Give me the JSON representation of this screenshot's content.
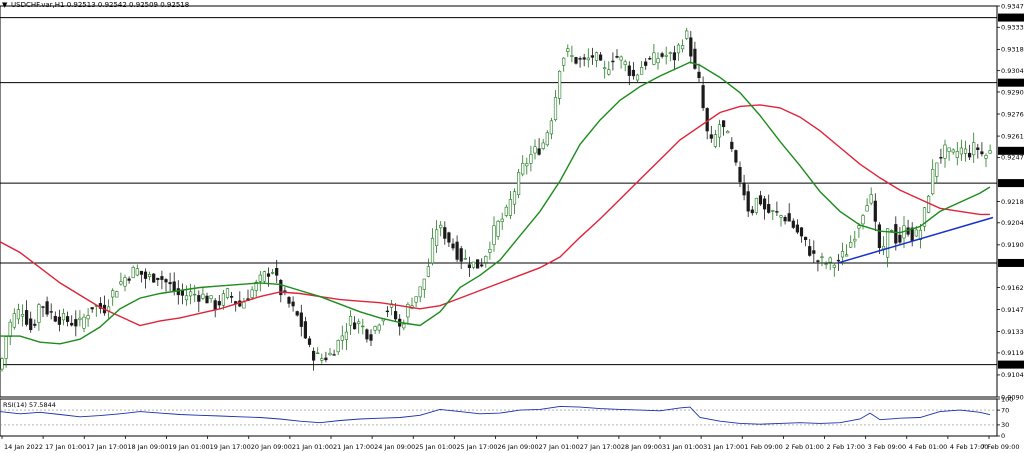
{
  "header": {
    "arrow_icon": "triangle-down-icon",
    "title": "USDCHF.var,H1  0.92513 0.92542 0.92509 0.92518"
  },
  "rsi": {
    "label": "RSI(14) 57.5844",
    "levels": [
      30,
      70
    ],
    "scale_labels": [
      "100",
      "70",
      "30",
      "0"
    ],
    "current": 57.5844
  },
  "colors": {
    "bull": "#1f7a1f",
    "bear": "#1a1a1a",
    "ma_fast": "#1c8c1c",
    "ma_slow": "#e0233a",
    "trendline": "#1530cc",
    "rsi": "#1a2fb0",
    "level": "#000000"
  },
  "chart_data": {
    "type": "candlestick",
    "symbol": "USDCHF.var",
    "timeframe": "H1",
    "last": {
      "open": 0.92513,
      "high": 0.92542,
      "low": 0.92509,
      "close": 0.92518
    },
    "ylim": [
      0.909,
      0.9347
    ],
    "price_scale_labels": [
      "0.93470",
      "0.93330",
      "0.93185",
      "0.93045",
      "0.92905",
      "0.92760",
      "0.92615",
      "0.92475",
      "0.92185",
      "0.92045",
      "0.91900",
      "0.91620",
      "0.91475",
      "0.91330",
      "0.91190",
      "0.91045",
      "0.90900"
    ],
    "horizontal_levels": [
      0.93394,
      0.92966,
      0.92306,
      0.91781,
      0.91113
    ],
    "current_price_label": "0.92518",
    "x_labels": [
      "14 Jan 2022",
      "17 Jan 01:00",
      "17 Jan 17:00",
      "18 Jan 09:00",
      "19 Jan 01:00",
      "19 Jan 17:00",
      "20 Jan 09:00",
      "21 Jan 01:00",
      "21 Jan 17:00",
      "24 Jan 09:00",
      "25 Jan 01:00",
      "25 Jan 17:00",
      "26 Jan 09:00",
      "27 Jan 01:00",
      "27 Jan 17:00",
      "28 Jan 09:00",
      "31 Jan 01:00",
      "31 Jan 17:00",
      "1 Feb 09:00",
      "2 Feb 01:00",
      "2 Feb 17:00",
      "3 Feb 09:00",
      "4 Feb 01:00",
      "4 Feb 17:00",
      "7 Feb 09:00"
    ],
    "price_path": [
      [
        0,
        0.9108
      ],
      [
        6,
        0.913
      ],
      [
        12,
        0.9142
      ],
      [
        22,
        0.9148
      ],
      [
        32,
        0.9133
      ],
      [
        40,
        0.9153
      ],
      [
        48,
        0.9146
      ],
      [
        58,
        0.9142
      ],
      [
        68,
        0.914
      ],
      [
        80,
        0.9138
      ],
      [
        92,
        0.915
      ],
      [
        104,
        0.9148
      ],
      [
        114,
        0.916
      ],
      [
        124,
        0.9168
      ],
      [
        136,
        0.9174
      ],
      [
        146,
        0.9168
      ],
      [
        158,
        0.917
      ],
      [
        170,
        0.9163
      ],
      [
        180,
        0.9156
      ],
      [
        192,
        0.9158
      ],
      [
        204,
        0.9156
      ],
      [
        216,
        0.915
      ],
      [
        228,
        0.9158
      ],
      [
        240,
        0.915
      ],
      [
        252,
        0.916
      ],
      [
        262,
        0.9168
      ],
      [
        272,
        0.9175
      ],
      [
        280,
        0.916
      ],
      [
        290,
        0.915
      ],
      [
        300,
        0.914
      ],
      [
        310,
        0.912
      ],
      [
        320,
        0.9115
      ],
      [
        330,
        0.9118
      ],
      [
        340,
        0.9128
      ],
      [
        350,
        0.914
      ],
      [
        360,
        0.9138
      ],
      [
        370,
        0.913
      ],
      [
        380,
        0.9142
      ],
      [
        390,
        0.915
      ],
      [
        400,
        0.9135
      ],
      [
        410,
        0.9152
      ],
      [
        420,
        0.916
      ],
      [
        428,
        0.9175
      ],
      [
        436,
        0.9202
      ],
      [
        444,
        0.9198
      ],
      [
        452,
        0.919
      ],
      [
        460,
        0.9182
      ],
      [
        470,
        0.9178
      ],
      [
        480,
        0.9176
      ],
      [
        488,
        0.9188
      ],
      [
        496,
        0.9202
      ],
      [
        506,
        0.921
      ],
      [
        514,
        0.9225
      ],
      [
        522,
        0.924
      ],
      [
        532,
        0.925
      ],
      [
        542,
        0.9255
      ],
      [
        550,
        0.927
      ],
      [
        556,
        0.929
      ],
      [
        560,
        0.931
      ],
      [
        566,
        0.9317
      ],
      [
        574,
        0.9312
      ],
      [
        584,
        0.931
      ],
      [
        594,
        0.9315
      ],
      [
        604,
        0.9303
      ],
      [
        614,
        0.9315
      ],
      [
        624,
        0.931
      ],
      [
        634,
        0.93
      ],
      [
        644,
        0.931
      ],
      [
        654,
        0.9312
      ],
      [
        664,
        0.9315
      ],
      [
        674,
        0.9313
      ],
      [
        682,
        0.9325
      ],
      [
        688,
        0.9328
      ],
      [
        694,
        0.9305
      ],
      [
        700,
        0.9295
      ],
      [
        706,
        0.9265
      ],
      [
        712,
        0.9255
      ],
      [
        720,
        0.927
      ],
      [
        728,
        0.926
      ],
      [
        736,
        0.924
      ],
      [
        742,
        0.923
      ],
      [
        750,
        0.921
      ],
      [
        758,
        0.9222
      ],
      [
        766,
        0.9212
      ],
      [
        776,
        0.921
      ],
      [
        786,
        0.9208
      ],
      [
        796,
        0.92
      ],
      [
        806,
        0.919
      ],
      [
        816,
        0.918
      ],
      [
        826,
        0.9178
      ],
      [
        836,
        0.9178
      ],
      [
        846,
        0.9185
      ],
      [
        856,
        0.92
      ],
      [
        864,
        0.9215
      ],
      [
        870,
        0.9225
      ],
      [
        876,
        0.9198
      ],
      [
        882,
        0.918
      ],
      [
        890,
        0.9205
      ],
      [
        898,
        0.919
      ],
      [
        906,
        0.9203
      ],
      [
        914,
        0.9194
      ],
      [
        922,
        0.9202
      ],
      [
        930,
        0.923
      ],
      [
        936,
        0.9245
      ],
      [
        944,
        0.9252
      ],
      [
        952,
        0.9248
      ],
      [
        960,
        0.9253
      ],
      [
        968,
        0.925
      ],
      [
        976,
        0.9255
      ],
      [
        984,
        0.9248
      ],
      [
        990,
        0.9251
      ]
    ],
    "ma_fast": [
      [
        0,
        0.913
      ],
      [
        20,
        0.913
      ],
      [
        40,
        0.9126
      ],
      [
        60,
        0.9125
      ],
      [
        80,
        0.9128
      ],
      [
        100,
        0.9136
      ],
      [
        120,
        0.9148
      ],
      [
        140,
        0.9155
      ],
      [
        160,
        0.9158
      ],
      [
        180,
        0.916
      ],
      [
        200,
        0.9162
      ],
      [
        220,
        0.9163
      ],
      [
        240,
        0.9164
      ],
      [
        260,
        0.9165
      ],
      [
        280,
        0.9164
      ],
      [
        300,
        0.916
      ],
      [
        320,
        0.9156
      ],
      [
        340,
        0.9151
      ],
      [
        360,
        0.9146
      ],
      [
        380,
        0.9142
      ],
      [
        400,
        0.9139
      ],
      [
        420,
        0.9137
      ],
      [
        440,
        0.9146
      ],
      [
        460,
        0.9162
      ],
      [
        480,
        0.917
      ],
      [
        500,
        0.918
      ],
      [
        520,
        0.9196
      ],
      [
        540,
        0.9212
      ],
      [
        560,
        0.9232
      ],
      [
        580,
        0.9256
      ],
      [
        600,
        0.9272
      ],
      [
        620,
        0.9285
      ],
      [
        640,
        0.9294
      ],
      [
        660,
        0.9301
      ],
      [
        680,
        0.9307
      ],
      [
        690,
        0.931
      ],
      [
        700,
        0.9308
      ],
      [
        720,
        0.93
      ],
      [
        740,
        0.929
      ],
      [
        760,
        0.9275
      ],
      [
        780,
        0.9258
      ],
      [
        800,
        0.9242
      ],
      [
        820,
        0.9225
      ],
      [
        840,
        0.9212
      ],
      [
        860,
        0.9203
      ],
      [
        880,
        0.9199
      ],
      [
        900,
        0.9198
      ],
      [
        920,
        0.9202
      ],
      [
        940,
        0.9212
      ],
      [
        960,
        0.9218
      ],
      [
        980,
        0.9224
      ],
      [
        990,
        0.9228
      ]
    ],
    "ma_slow": [
      [
        0,
        0.9192
      ],
      [
        20,
        0.9185
      ],
      [
        40,
        0.9175
      ],
      [
        60,
        0.9165
      ],
      [
        80,
        0.9157
      ],
      [
        100,
        0.9149
      ],
      [
        120,
        0.9143
      ],
      [
        140,
        0.9137
      ],
      [
        160,
        0.914
      ],
      [
        180,
        0.9142
      ],
      [
        200,
        0.9145
      ],
      [
        220,
        0.9148
      ],
      [
        240,
        0.9152
      ],
      [
        260,
        0.9156
      ],
      [
        280,
        0.9159
      ],
      [
        300,
        0.9158
      ],
      [
        320,
        0.9156
      ],
      [
        340,
        0.9154
      ],
      [
        360,
        0.9153
      ],
      [
        380,
        0.9152
      ],
      [
        400,
        0.915
      ],
      [
        420,
        0.9148
      ],
      [
        440,
        0.915
      ],
      [
        460,
        0.9155
      ],
      [
        480,
        0.916
      ],
      [
        500,
        0.9165
      ],
      [
        520,
        0.917
      ],
      [
        540,
        0.9175
      ],
      [
        560,
        0.9182
      ],
      [
        580,
        0.9195
      ],
      [
        600,
        0.9207
      ],
      [
        620,
        0.922
      ],
      [
        640,
        0.9233
      ],
      [
        660,
        0.9246
      ],
      [
        680,
        0.9259
      ],
      [
        700,
        0.9268
      ],
      [
        720,
        0.9277
      ],
      [
        740,
        0.9281
      ],
      [
        760,
        0.9282
      ],
      [
        780,
        0.928
      ],
      [
        800,
        0.9274
      ],
      [
        820,
        0.9265
      ],
      [
        840,
        0.9254
      ],
      [
        860,
        0.9243
      ],
      [
        880,
        0.9234
      ],
      [
        900,
        0.9226
      ],
      [
        920,
        0.922
      ],
      [
        940,
        0.9214
      ],
      [
        960,
        0.9212
      ],
      [
        980,
        0.921
      ],
      [
        990,
        0.921
      ]
    ],
    "trendline": [
      [
        838,
        0.91781
      ],
      [
        993,
        0.9208
      ]
    ],
    "rsi_path": [
      [
        0,
        66
      ],
      [
        20,
        60
      ],
      [
        40,
        64
      ],
      [
        60,
        58
      ],
      [
        80,
        52
      ],
      [
        100,
        55
      ],
      [
        120,
        60
      ],
      [
        140,
        66
      ],
      [
        160,
        62
      ],
      [
        180,
        58
      ],
      [
        200,
        56
      ],
      [
        220,
        54
      ],
      [
        240,
        52
      ],
      [
        260,
        50
      ],
      [
        280,
        46
      ],
      [
        300,
        40
      ],
      [
        320,
        36
      ],
      [
        340,
        42
      ],
      [
        360,
        46
      ],
      [
        380,
        48
      ],
      [
        400,
        50
      ],
      [
        420,
        56
      ],
      [
        440,
        72
      ],
      [
        460,
        66
      ],
      [
        480,
        60
      ],
      [
        500,
        62
      ],
      [
        520,
        70
      ],
      [
        540,
        72
      ],
      [
        560,
        80
      ],
      [
        580,
        78
      ],
      [
        600,
        74
      ],
      [
        620,
        72
      ],
      [
        640,
        70
      ],
      [
        660,
        68
      ],
      [
        680,
        76
      ],
      [
        690,
        78
      ],
      [
        700,
        50
      ],
      [
        720,
        40
      ],
      [
        740,
        34
      ],
      [
        760,
        32
      ],
      [
        780,
        34
      ],
      [
        800,
        36
      ],
      [
        820,
        34
      ],
      [
        840,
        36
      ],
      [
        860,
        46
      ],
      [
        870,
        62
      ],
      [
        880,
        44
      ],
      [
        900,
        48
      ],
      [
        920,
        50
      ],
      [
        940,
        66
      ],
      [
        960,
        70
      ],
      [
        980,
        64
      ],
      [
        990,
        57.58
      ]
    ]
  }
}
